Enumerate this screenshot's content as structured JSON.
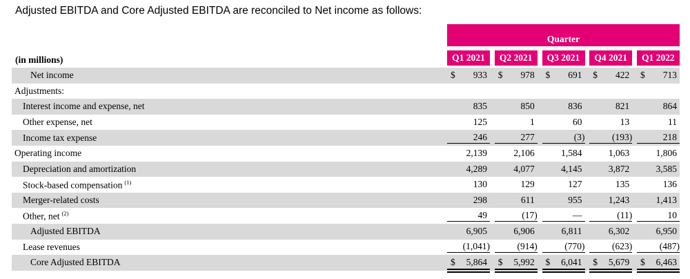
{
  "title": "Adjusted EBITDA and Core Adjusted EBITDA are reconciled to Net income as follows:",
  "colors": {
    "accent_magenta": "#E20074",
    "row_stripe_grey": "#D9D9D9",
    "text_black": "#000000"
  },
  "table": {
    "banner": "Quarter",
    "units_label": "(in millions)",
    "dollar_sign": "$",
    "columns": [
      "Q1 2021",
      "Q2 2021",
      "Q3 2021",
      "Q4 2021",
      "Q1 2022"
    ],
    "rows": [
      {
        "label": "Net income",
        "indent": 2,
        "dollar": true,
        "values": [
          "933",
          "978",
          "691",
          "422",
          "713"
        ]
      },
      {
        "label": "Adjustments:",
        "indent": 0,
        "values": [
          "",
          "",
          "",
          "",
          ""
        ]
      },
      {
        "label": "Interest income and expense, net",
        "indent": 1,
        "values": [
          "835",
          "850",
          "836",
          "821",
          "864"
        ]
      },
      {
        "label": "Other expense, net",
        "indent": 1,
        "values": [
          "125",
          "1",
          "60",
          "13",
          "11"
        ]
      },
      {
        "label": "Income tax expense",
        "indent": 1,
        "underline": "single",
        "values": [
          "246",
          "277",
          "(3)",
          "(193)",
          "218"
        ]
      },
      {
        "label": "Operating income",
        "indent": 0,
        "values": [
          "2,139",
          "2,106",
          "1,584",
          "1,063",
          "1,806"
        ]
      },
      {
        "label": "Depreciation and amortization",
        "indent": 1,
        "values": [
          "4,289",
          "4,077",
          "4,145",
          "3,872",
          "3,585"
        ]
      },
      {
        "label": "Stock-based compensation",
        "sup": "(1)",
        "indent": 1,
        "values": [
          "130",
          "129",
          "127",
          "135",
          "136"
        ]
      },
      {
        "label": "Merger-related costs",
        "indent": 1,
        "values": [
          "298",
          "611",
          "955",
          "1,243",
          "1,413"
        ]
      },
      {
        "label": "Other, net",
        "sup": "(2)",
        "indent": 1,
        "underline": "single",
        "values": [
          "49",
          "(17)",
          "—",
          "(11)",
          "10"
        ]
      },
      {
        "label": "Adjusted EBITDA",
        "indent": 2,
        "values": [
          "6,905",
          "6,906",
          "6,811",
          "6,302",
          "6,950"
        ]
      },
      {
        "label": "Lease revenues",
        "indent": 1,
        "underline": "single",
        "values": [
          "(1,041)",
          "(914)",
          "(770)",
          "(623)",
          "(487)"
        ]
      },
      {
        "label": "Core Adjusted EBITDA",
        "indent": 2,
        "dollar": true,
        "underline": "double",
        "values": [
          "5,864",
          "5,992",
          "6,041",
          "5,679",
          "6,463"
        ]
      }
    ]
  }
}
